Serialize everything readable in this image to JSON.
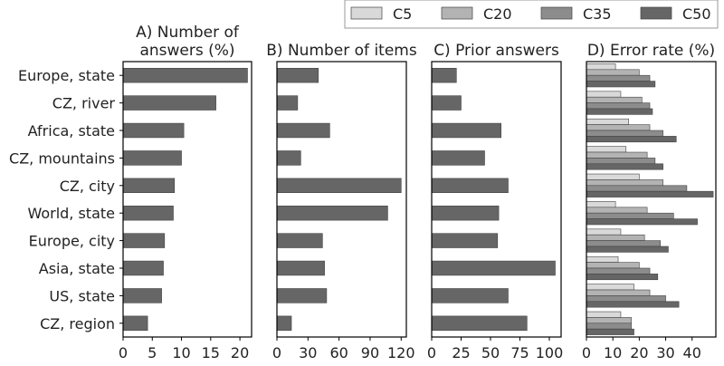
{
  "colors": {
    "C5": "#d9d9d9",
    "C20": "#b3b3b3",
    "C35": "#8c8c8c",
    "C50": "#666666",
    "bar_single": "#666666",
    "frame": "#000000"
  },
  "chart_data": [
    {
      "type": "bar",
      "orientation": "horizontal",
      "title": "A) Number of answers (%)",
      "title_lines": [
        "A) Number of",
        "answers (%)"
      ],
      "categories": [
        "Europe, state",
        "CZ, river",
        "Africa, state",
        "CZ, mountains",
        "CZ, city",
        "World, state",
        "Europe, city",
        "Asia, state",
        "US, state",
        "CZ, region"
      ],
      "values": [
        21.3,
        15.9,
        10.4,
        10.0,
        8.8,
        8.6,
        7.1,
        6.9,
        6.6,
        4.2
      ],
      "xlim": [
        0,
        22
      ],
      "xticks": [
        "0",
        "5",
        "10",
        "15",
        "20"
      ],
      "xtick_values": [
        0,
        5,
        10,
        15,
        20
      ]
    },
    {
      "type": "bar",
      "orientation": "horizontal",
      "title": "B) Number of items",
      "categories": [
        "Europe, state",
        "CZ, river",
        "Africa, state",
        "CZ, mountains",
        "CZ, city",
        "World, state",
        "Europe, city",
        "Asia, state",
        "US, state",
        "CZ, region"
      ],
      "values": [
        40,
        20,
        51,
        23,
        120,
        107,
        44,
        46,
        48,
        14
      ],
      "xlim": [
        0,
        125
      ],
      "xticks": [
        "0",
        "30",
        "60",
        "90",
        "120"
      ],
      "xtick_values": [
        0,
        30,
        60,
        90,
        120
      ]
    },
    {
      "type": "bar",
      "orientation": "horizontal",
      "title": "C) Prior answers",
      "categories": [
        "Europe, state",
        "CZ, river",
        "Africa, state",
        "CZ, mountains",
        "CZ, city",
        "World, state",
        "Europe, city",
        "Asia, state",
        "US, state",
        "CZ, region"
      ],
      "values": [
        21,
        25,
        59,
        45,
        65,
        57,
        56,
        105,
        65,
        81
      ],
      "xlim": [
        0,
        110
      ],
      "xticks": [
        "0",
        "25",
        "50",
        "75",
        "100"
      ],
      "xtick_values": [
        0,
        25,
        50,
        75,
        100
      ]
    },
    {
      "type": "bar",
      "orientation": "horizontal",
      "title": "D) Error rate (%)",
      "categories": [
        "Europe, state",
        "CZ, river",
        "Africa, state",
        "CZ, mountains",
        "CZ, city",
        "World, state",
        "Europe, city",
        "Asia, state",
        "US, state",
        "CZ, region"
      ],
      "series": [
        {
          "name": "C5",
          "values": [
            11,
            13,
            16,
            15,
            20,
            11,
            13,
            12,
            18,
            13
          ]
        },
        {
          "name": "C20",
          "values": [
            20,
            21,
            24,
            23,
            29,
            23,
            22,
            20,
            24,
            17
          ]
        },
        {
          "name": "C35",
          "values": [
            24,
            24,
            29,
            26,
            38,
            33,
            28,
            24,
            30,
            17
          ]
        },
        {
          "name": "C50",
          "values": [
            26,
            25,
            34,
            29,
            48,
            42,
            31,
            27,
            35,
            18
          ]
        }
      ],
      "xlim": [
        0,
        49
      ],
      "xticks": [
        "0",
        "10",
        "20",
        "30",
        "40"
      ],
      "xtick_values": [
        0,
        10,
        20,
        30,
        40
      ]
    }
  ],
  "legend": {
    "items": [
      "C5",
      "C20",
      "C35",
      "C50"
    ],
    "placement": "top-right"
  }
}
